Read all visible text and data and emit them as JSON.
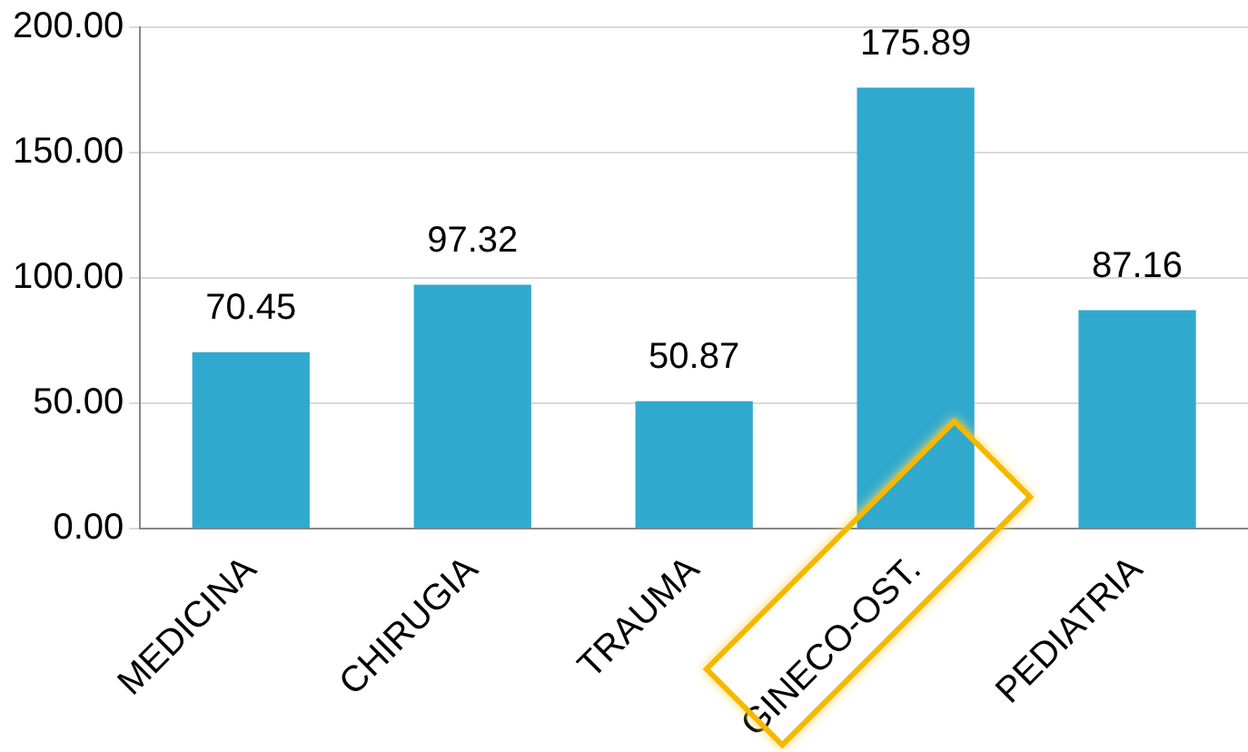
{
  "chart_data": {
    "type": "bar",
    "categories": [
      "MEDICINA",
      "CHIRUGIA",
      "TRAUMA",
      "GINECO-OST.",
      "PEDIATRIA"
    ],
    "values": [
      70.45,
      97.32,
      50.87,
      175.89,
      87.16
    ],
    "color": "#31a9cf",
    "ylim": [
      0,
      200
    ],
    "yticks": [
      {
        "value": 0,
        "label": "0.00"
      },
      {
        "value": 50,
        "label": "50.00"
      },
      {
        "value": 100,
        "label": "100.00"
      },
      {
        "value": 150,
        "label": "150.00"
      },
      {
        "value": 200,
        "label": "200.00"
      }
    ],
    "grid": "y",
    "data_labels": true
  }
}
